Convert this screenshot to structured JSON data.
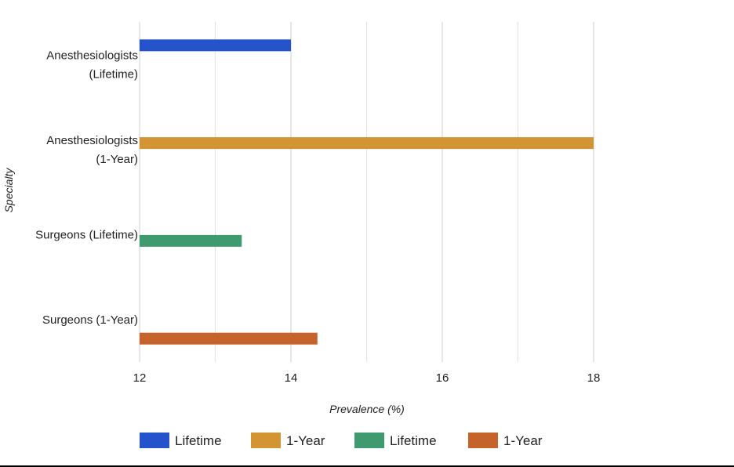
{
  "chart_data": {
    "type": "bar",
    "orientation": "horizontal",
    "title": "",
    "xlabel": "Prevalence (%)",
    "ylabel": "Specialty",
    "xlim": [
      12,
      19.5
    ],
    "xticks": [
      12,
      14,
      16,
      18
    ],
    "grid": true,
    "legend_position": "bottom",
    "categories": [
      [
        "Anesthesiologists",
        "(Lifetime)"
      ],
      [
        "Anesthesiologists",
        "(1-Year)"
      ],
      [
        "Surgeons (Lifetime)"
      ],
      [
        "Surgeons (1-Year)"
      ]
    ],
    "series": [
      {
        "name": "Lifetime",
        "color": "#2553cc",
        "values": [
          14,
          null,
          null,
          null
        ]
      },
      {
        "name": "1-Year",
        "color": "#d39433",
        "values": [
          null,
          18,
          null,
          null
        ]
      },
      {
        "name": "Lifetime",
        "color": "#3f9a70",
        "values": [
          null,
          null,
          13.35,
          null
        ]
      },
      {
        "name": "1-Year",
        "color": "#c6632a",
        "values": [
          null,
          null,
          null,
          14.35
        ]
      }
    ]
  }
}
